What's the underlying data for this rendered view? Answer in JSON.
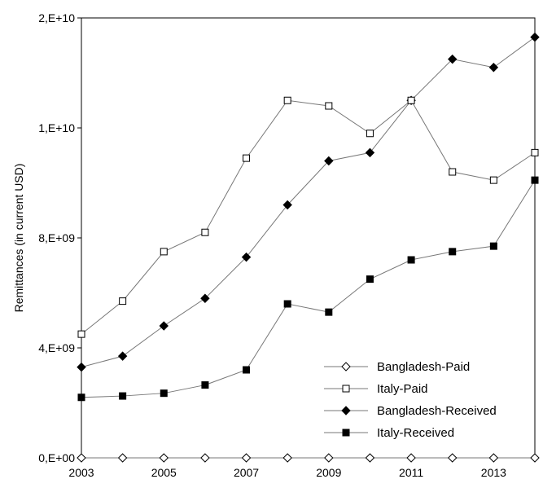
{
  "chart_data": {
    "type": "line",
    "title": "",
    "xlabel": "",
    "ylabel": "Remittances (in current USD)",
    "x": [
      2003,
      2004,
      2005,
      2006,
      2007,
      2008,
      2009,
      2010,
      2011,
      2012,
      2013,
      2014
    ],
    "xlim": [
      2003,
      2014
    ],
    "x_tick_values": [
      2003,
      2005,
      2007,
      2009,
      2011,
      2013
    ],
    "x_tick_labels": [
      "2003",
      "2005",
      "2007",
      "2009",
      "2011",
      "2013"
    ],
    "ylim": [
      0,
      16000000000
    ],
    "y_tick_values": [
      0,
      4000000000,
      8000000000,
      12000000000,
      16000000000
    ],
    "y_tick_labels": [
      "0,E+00",
      "4,E+09",
      "8,E+09",
      "1,E+10",
      "2,E+10"
    ],
    "grid": false,
    "legend_position": "bottom-right",
    "series": [
      {
        "name": "Bangladesh-Paid",
        "marker": "diamond-open",
        "values": [
          0,
          0,
          0,
          0,
          0,
          0,
          0,
          0,
          0,
          0,
          0,
          0
        ]
      },
      {
        "name": "Italy-Paid",
        "marker": "square-open",
        "values": [
          4500000000,
          5700000000,
          7500000000,
          8200000000,
          10900000000,
          13000000000,
          12800000000,
          11800000000,
          13000000000,
          10400000000,
          10100000000,
          11100000000
        ]
      },
      {
        "name": "Bangladesh-Received",
        "marker": "diamond-filled",
        "values": [
          3300000000,
          3700000000,
          4800000000,
          5800000000,
          7300000000,
          9200000000,
          10800000000,
          11100000000,
          13000000000,
          14500000000,
          14200000000,
          15300000000
        ]
      },
      {
        "name": "Italy-Received",
        "marker": "square-filled",
        "values": [
          2200000000,
          2250000000,
          2350000000,
          2650000000,
          3200000000,
          5600000000,
          5300000000,
          6500000000,
          7200000000,
          7500000000,
          7700000000,
          10100000000
        ]
      }
    ],
    "colors": {
      "line": "#777777",
      "marker": "#000000",
      "axis": "#000000"
    }
  }
}
